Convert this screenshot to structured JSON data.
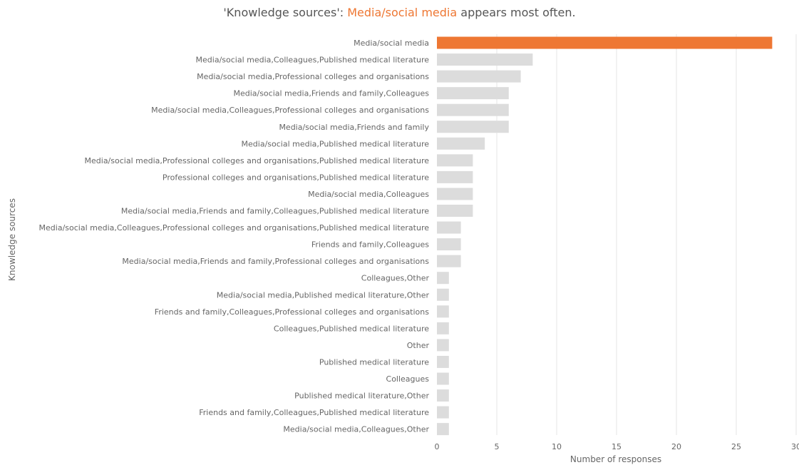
{
  "title": {
    "prefix": "'Knowledge sources': ",
    "highlight": "Media/social media",
    "suffix": " appears most often."
  },
  "colors": {
    "highlight": "#ee7733",
    "bar": "#dcdcdc",
    "grid": "#e6e6e6",
    "text": "#666666"
  },
  "chart_data": {
    "type": "bar",
    "orientation": "horizontal",
    "xlabel": "Number of responses",
    "ylabel": "Knowledge sources",
    "xlim": [
      0,
      30
    ],
    "xticks": [
      0,
      5,
      10,
      15,
      20,
      25,
      30
    ],
    "grid": true,
    "highlighted_category": "Media/social media",
    "categories": [
      "Media/social media",
      "Media/social media,Colleagues,Published medical literature",
      "Media/social media,Professional colleges and organisations",
      "Media/social media,Friends and family,Colleagues",
      "Media/social media,Colleagues,Professional colleges and organisations",
      "Media/social media,Friends and family",
      "Media/social media,Published medical literature",
      "Media/social media,Professional colleges and organisations,Published medical literature",
      "Professional colleges and organisations,Published medical literature",
      "Media/social media,Colleagues",
      "Media/social media,Friends and family,Colleagues,Published medical literature",
      "Media/social media,Colleagues,Professional colleges and organisations,Published medical literature",
      "Friends and family,Colleagues",
      "Media/social media,Friends and family,Professional colleges and organisations",
      "Colleagues,Other",
      "Media/social media,Published medical literature,Other",
      "Friends and family,Colleagues,Professional colleges and organisations",
      "Colleagues,Published medical literature",
      "Other",
      "Published medical literature",
      "Colleagues",
      "Published medical literature,Other",
      "Friends and family,Colleagues,Published medical literature",
      "Media/social media,Colleagues,Other"
    ],
    "values": [
      28,
      8,
      7,
      6,
      6,
      6,
      4,
      3,
      3,
      3,
      3,
      2,
      2,
      2,
      1,
      1,
      1,
      1,
      1,
      1,
      1,
      1,
      1,
      1
    ]
  }
}
